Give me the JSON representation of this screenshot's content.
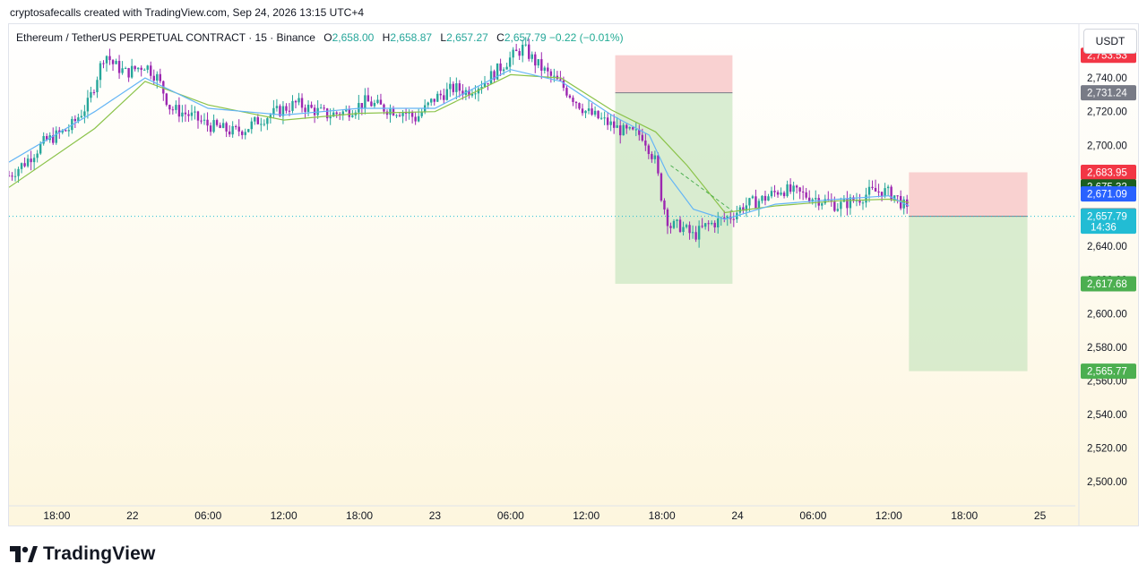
{
  "header": {
    "credit": "cryptosafecalls created with TradingView.com, Sep 24, 2026 13:15 UTC+4"
  },
  "legend": {
    "symbol": "Ethereum / TetherUS PERPETUAL CONTRACT · 15 · Binance",
    "open_label": "O",
    "open": "2,658.00",
    "high_label": "H",
    "high": "2,658.87",
    "low_label": "L",
    "low": "2,657.27",
    "close_label": "C",
    "close": "2,657.79",
    "change": "−0.22 (−0.01%)"
  },
  "currency": "USDT",
  "branding": {
    "name": "TradingView",
    "logo_text": "TV"
  },
  "colors": {
    "up": "#26a69a",
    "down": "#9c27b0",
    "ma_fast": "#64b5f6",
    "ma_slow": "#8bc34a",
    "stop_zone": "#f8c9c9",
    "target_zone": "#c9e6c0",
    "last_price": "#22bcd4"
  },
  "chart_data": {
    "type": "candlestick",
    "title": "Ethereum / TetherUS PERPETUAL CONTRACT · 15 · Binance",
    "xlabel": "",
    "ylabel": "",
    "ylim": [
      2490,
      2772
    ],
    "y_ticks": [
      "2,760.00",
      "2,740.00",
      "2,720.00",
      "2,700.00",
      "2,680.00",
      "2,660.00",
      "2,640.00",
      "2,620.00",
      "2,600.00",
      "2,580.00",
      "2,560.00",
      "2,540.00",
      "2,520.00",
      "2,500.00"
    ],
    "x_ticks": [
      "18:00",
      "22",
      "06:00",
      "12:00",
      "18:00",
      "23",
      "06:00",
      "12:00",
      "18:00",
      "24",
      "06:00",
      "12:00",
      "18:00",
      "25"
    ],
    "x_tick_hours": [
      0,
      6,
      12,
      18,
      24,
      30,
      36,
      42,
      48,
      54,
      60,
      66,
      72,
      78
    ],
    "hour_range": [
      -3.8,
      80.8
    ],
    "gridlines": false,
    "price_path": [
      [
        -3.8,
        2682
      ],
      [
        -2.5,
        2690
      ],
      [
        -1,
        2702
      ],
      [
        1,
        2710
      ],
      [
        2.5,
        2725
      ],
      [
        3.8,
        2755
      ],
      [
        4.5,
        2748
      ],
      [
        5.5,
        2743
      ],
      [
        7,
        2748
      ],
      [
        8,
        2740
      ],
      [
        9,
        2722
      ],
      [
        10.5,
        2718
      ],
      [
        12,
        2712
      ],
      [
        13,
        2710
      ],
      [
        14,
        2708
      ],
      [
        15,
        2710
      ],
      [
        16,
        2715
      ],
      [
        17.5,
        2720
      ],
      [
        19,
        2725
      ],
      [
        20,
        2722
      ],
      [
        21.5,
        2718
      ],
      [
        23,
        2720
      ],
      [
        24.5,
        2726
      ],
      [
        26,
        2722
      ],
      [
        27.5,
        2720
      ],
      [
        28.5,
        2716
      ],
      [
        30,
        2728
      ],
      [
        31.5,
        2734
      ],
      [
        32.5,
        2732
      ],
      [
        34,
        2738
      ],
      [
        35,
        2745
      ],
      [
        36,
        2752
      ],
      [
        37,
        2758
      ],
      [
        38,
        2749
      ],
      [
        39,
        2742
      ],
      [
        40,
        2736
      ],
      [
        41,
        2728
      ],
      [
        42,
        2720
      ],
      [
        43.5,
        2714
      ],
      [
        45,
        2708
      ],
      [
        46.5,
        2706
      ],
      [
        47.5,
        2690
      ],
      [
        48,
        2668
      ],
      [
        48.6,
        2652
      ],
      [
        49.5,
        2652
      ],
      [
        50.5,
        2646
      ],
      [
        51.5,
        2652
      ],
      [
        52.5,
        2655
      ],
      [
        53.5,
        2658
      ],
      [
        54.5,
        2664
      ],
      [
        56,
        2668
      ],
      [
        57.5,
        2674
      ],
      [
        59,
        2671
      ],
      [
        60.5,
        2668
      ],
      [
        62,
        2664
      ],
      [
        63.5,
        2668
      ],
      [
        64.5,
        2672
      ],
      [
        65.5,
        2673
      ],
      [
        66.5,
        2670
      ],
      [
        67.2,
        2664
      ],
      [
        67.6,
        2658
      ]
    ],
    "ma_fast_path": [
      [
        -3.8,
        2690
      ],
      [
        3,
        2720
      ],
      [
        7,
        2740
      ],
      [
        12,
        2722
      ],
      [
        18,
        2718
      ],
      [
        24,
        2722
      ],
      [
        30,
        2722
      ],
      [
        36,
        2745
      ],
      [
        40,
        2738
      ],
      [
        44,
        2718
      ],
      [
        47,
        2706
      ],
      [
        48.5,
        2682
      ],
      [
        50.5,
        2662
      ],
      [
        53,
        2656
      ],
      [
        57,
        2665
      ],
      [
        62,
        2668
      ],
      [
        66,
        2670
      ],
      [
        67.6,
        2664
      ]
    ],
    "ma_slow_path": [
      [
        -3.8,
        2675
      ],
      [
        3,
        2710
      ],
      [
        7,
        2738
      ],
      [
        12,
        2724
      ],
      [
        18,
        2715
      ],
      [
        24,
        2719
      ],
      [
        30,
        2720
      ],
      [
        36,
        2742
      ],
      [
        40,
        2740
      ],
      [
        44,
        2721
      ],
      [
        47.5,
        2708
      ],
      [
        50,
        2688
      ],
      [
        53,
        2660
      ],
      [
        57,
        2664
      ],
      [
        62,
        2667
      ],
      [
        66,
        2668
      ],
      [
        67.6,
        2666
      ]
    ],
    "dashed_line": [
      [
        48.7,
        2688
      ],
      [
        53.6,
        2661
      ]
    ],
    "positions": [
      {
        "entry": 2731.24,
        "stop": 2753.53,
        "target": 2617.68,
        "from_hour": 44.3,
        "to_hour": 53.6
      },
      {
        "entry": 2657.79,
        "stop": 2683.95,
        "target": 2565.77,
        "from_hour": 67.6,
        "to_hour": 77.0
      }
    ],
    "price_labels": [
      {
        "text": "2,753.53",
        "value": 2753.53,
        "color": "#f23645"
      },
      {
        "text": "2,731.24",
        "value": 2731.24,
        "color": "#787b86"
      },
      {
        "text": "2,683.95",
        "value": 2683.95,
        "color": "#f23645"
      },
      {
        "text": "2,675.32",
        "value": 2675.32,
        "color": "#1b5e20"
      },
      {
        "text": "2,671.09",
        "value": 2671.09,
        "color": "#2962ff"
      },
      {
        "text": "2,658.13",
        "value": 2658.13,
        "color": "#787b86"
      },
      {
        "text": "2,657.79",
        "value": 2657.79,
        "color": "#22bcd4",
        "sub": "14:36"
      },
      {
        "text": "2,617.68",
        "value": 2617.68,
        "color": "#4caf50"
      },
      {
        "text": "2,565.77",
        "value": 2565.77,
        "color": "#4caf50"
      }
    ],
    "last_price": 2657.79
  }
}
